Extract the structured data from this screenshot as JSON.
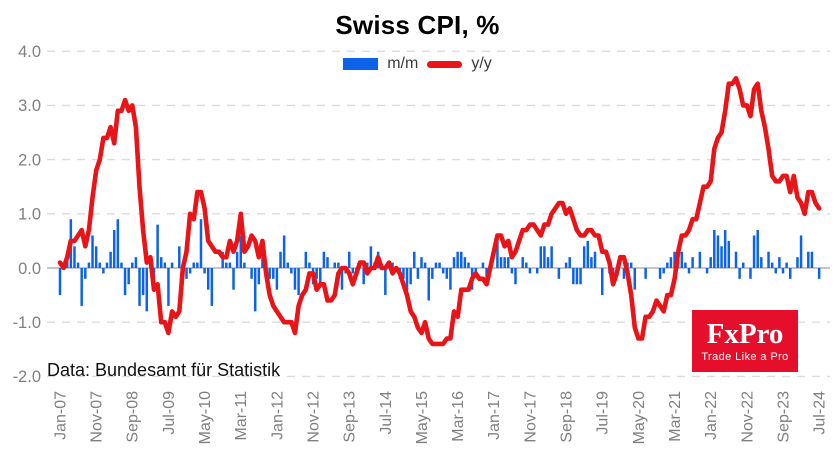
{
  "title": "Swiss CPI, %",
  "source_note": "Data: Bundesamt für Statistik",
  "logo": {
    "brand": "FxPro",
    "tagline": "Trade Like a Pro",
    "bg_color": "#e60f2b",
    "text_color": "#ffffff"
  },
  "colors": {
    "bar": "#0d63e8",
    "line": "#e91418",
    "grid": "#dcdcdc",
    "zero_line": "#c6c6c6",
    "axis_text": "#808080",
    "background": "#ffffff"
  },
  "chart_data": {
    "type": "combo_bar_line",
    "title": "Swiss CPI, %",
    "xlabel": "",
    "ylabel": "",
    "x_start": "Jan-07",
    "x_end": "Jul-24",
    "x_interval": "monthly",
    "ylim": [
      -2.0,
      4.0
    ],
    "grid": "horizontal dashed",
    "legend_position": "top-center",
    "y_tick_labels": [
      "4.0",
      "3.0",
      "2.0",
      "1.0",
      "0.0",
      "-1.0",
      "-2.0"
    ],
    "y_tick_values": [
      4.0,
      3.0,
      2.0,
      1.0,
      0.0,
      -1.0,
      -2.0
    ],
    "x_tick_every_n_months": 10,
    "x_tick_labels": [
      "Jan-07",
      "Nov-07",
      "Sep-08",
      "Jul-09",
      "May-10",
      "Mar-11",
      "Jan-12",
      "Nov-12",
      "Sep-13",
      "Jul-14",
      "May-15",
      "Mar-16",
      "Jan-17",
      "Nov-17",
      "Sep-18",
      "Jul-19",
      "May-20",
      "Mar-21",
      "Jan-22",
      "Nov-22",
      "Sep-23",
      "Jul-24"
    ],
    "series": [
      {
        "name": "m/m",
        "kind": "bar",
        "color": "#0d63e8",
        "values": [
          -0.5,
          0.1,
          0.2,
          0.9,
          0.4,
          0.1,
          -0.7,
          -0.2,
          0.1,
          0.6,
          0.4,
          0.1,
          -0.1,
          0.1,
          0.3,
          0.7,
          0.9,
          0.1,
          -0.5,
          -0.3,
          0.1,
          0.2,
          -0.7,
          -0.5,
          -0.8,
          0.2,
          -0.3,
          0.8,
          0.2,
          0.1,
          -0.7,
          0.1,
          0.0,
          0.4,
          0.1,
          -0.2,
          -0.1,
          0.1,
          0.1,
          0.9,
          -0.1,
          -0.4,
          -0.7,
          0.0,
          0.0,
          0.3,
          0.1,
          0.1,
          -0.4,
          0.3,
          0.6,
          0.1,
          0.0,
          -0.2,
          -0.8,
          -0.3,
          0.3,
          0.1,
          -0.2,
          -0.2,
          -0.4,
          0.3,
          0.6,
          0.1,
          -0.1,
          -0.4,
          -0.5,
          0.0,
          0.3,
          0.1,
          -0.3,
          -0.2,
          -0.3,
          0.3,
          0.2,
          0.0,
          0.1,
          0.1,
          -0.4,
          -0.1,
          0.3,
          -0.1,
          -0.1,
          0.0,
          -0.3,
          0.1,
          0.4,
          0.1,
          0.3,
          0.0,
          -0.5,
          0.0,
          0.1,
          0.0,
          -0.2,
          -0.2,
          -0.6,
          -0.3,
          0.3,
          -0.2,
          0.2,
          0.1,
          -0.6,
          -0.2,
          0.1,
          0.1,
          -0.1,
          -0.2,
          -0.4,
          0.2,
          0.3,
          0.3,
          0.2,
          0.1,
          -0.4,
          -0.1,
          0.0,
          0.1,
          -0.2,
          0.0,
          0.0,
          0.5,
          0.2,
          0.2,
          0.2,
          -0.1,
          -0.3,
          0.0,
          0.2,
          0.1,
          -0.1,
          0.0,
          -0.1,
          0.4,
          0.4,
          0.2,
          0.4,
          0.0,
          -0.2,
          0.0,
          0.1,
          0.2,
          -0.3,
          -0.3,
          -0.3,
          0.4,
          0.5,
          0.2,
          0.3,
          0.0,
          -0.5,
          0.0,
          -0.1,
          -0.2,
          0.0,
          0.0,
          -0.2,
          0.1,
          0.1,
          -0.4,
          0.0,
          0.0,
          -0.2,
          0.0,
          0.0,
          0.0,
          -0.2,
          -0.1,
          0.1,
          0.2,
          0.3,
          0.2,
          0.3,
          0.1,
          -0.1,
          0.2,
          0.0,
          0.3,
          0.0,
          -0.1,
          0.2,
          0.7,
          0.6,
          0.4,
          0.7,
          0.5,
          0.0,
          0.3,
          -0.2,
          0.1,
          0.0,
          -0.2,
          0.6,
          0.7,
          0.2,
          0.0,
          0.3,
          0.1,
          -0.1,
          0.2,
          -0.1,
          0.1,
          -0.2,
          0.0,
          0.2,
          0.6,
          0.0,
          0.3,
          0.3,
          0.0,
          -0.2
        ]
      },
      {
        "name": "y/y",
        "kind": "line",
        "color": "#e91418",
        "values": [
          0.1,
          0.0,
          0.2,
          0.5,
          0.5,
          0.6,
          0.7,
          0.4,
          0.7,
          1.3,
          1.8,
          2.0,
          2.4,
          2.4,
          2.6,
          2.3,
          2.9,
          2.9,
          3.1,
          2.9,
          3.0,
          2.6,
          1.5,
          0.7,
          0.1,
          0.2,
          -0.4,
          -0.3,
          -1.0,
          -1.0,
          -1.2,
          -0.8,
          -0.9,
          -0.8,
          0.0,
          0.3,
          1.0,
          0.9,
          1.4,
          1.4,
          1.1,
          0.5,
          0.4,
          0.3,
          0.3,
          0.2,
          0.2,
          0.5,
          0.3,
          0.5,
          1.0,
          0.3,
          0.4,
          0.6,
          0.5,
          0.2,
          0.5,
          -0.1,
          -0.5,
          -0.7,
          -0.8,
          -0.9,
          -1.0,
          -1.0,
          -1.0,
          -1.2,
          -0.7,
          -0.5,
          -0.4,
          -0.1,
          -0.1,
          -0.4,
          -0.3,
          -0.3,
          -0.6,
          -0.6,
          -0.5,
          -0.1,
          0.0,
          0.0,
          -0.1,
          -0.3,
          -0.1,
          0.1,
          0.1,
          -0.1,
          0.0,
          0.0,
          0.2,
          0.0,
          0.0,
          0.1,
          -0.1,
          0.0,
          -0.1,
          -0.3,
          -0.5,
          -0.8,
          -0.9,
          -1.1,
          -1.2,
          -1.0,
          -1.3,
          -1.4,
          -1.4,
          -1.4,
          -1.4,
          -1.3,
          -1.3,
          -0.8,
          -0.9,
          -0.4,
          -0.4,
          -0.4,
          -0.2,
          -0.1,
          -0.2,
          -0.2,
          -0.3,
          0.0,
          0.3,
          0.6,
          0.6,
          0.4,
          0.5,
          0.2,
          0.3,
          0.5,
          0.7,
          0.7,
          0.8,
          0.8,
          0.7,
          0.6,
          0.8,
          0.8,
          1.0,
          1.1,
          1.2,
          1.2,
          1.0,
          1.1,
          0.9,
          0.7,
          0.6,
          0.6,
          0.7,
          0.7,
          0.6,
          0.6,
          0.3,
          0.3,
          0.1,
          -0.3,
          -0.1,
          0.2,
          0.2,
          -0.1,
          -0.5,
          -1.1,
          -1.3,
          -1.3,
          -0.9,
          -0.9,
          -0.8,
          -0.6,
          -0.7,
          -0.8,
          -0.5,
          -0.5,
          -0.2,
          0.3,
          0.6,
          0.6,
          0.7,
          0.9,
          0.9,
          1.2,
          1.5,
          1.5,
          1.6,
          2.2,
          2.4,
          2.5,
          2.9,
          3.4,
          3.4,
          3.5,
          3.3,
          3.0,
          3.0,
          2.8,
          3.3,
          3.4,
          2.9,
          2.6,
          2.2,
          1.7,
          1.6,
          1.6,
          1.7,
          1.7,
          1.4,
          1.7,
          1.3,
          1.2,
          1.0,
          1.4,
          1.4,
          1.2,
          1.1
        ]
      }
    ]
  }
}
